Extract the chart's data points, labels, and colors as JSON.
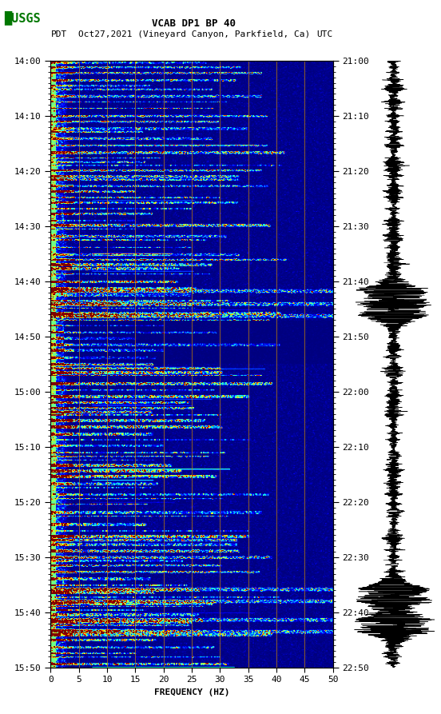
{
  "title_line1": "VCAB DP1 BP 40",
  "title_line2_left": "PDT",
  "title_line2_mid": "Oct27,2021 (Vineyard Canyon, Parkfield, Ca)",
  "title_line2_right": "UTC",
  "freq_min": 0,
  "freq_max": 50,
  "freq_ticks": [
    0,
    5,
    10,
    15,
    20,
    25,
    30,
    35,
    40,
    45,
    50
  ],
  "freq_label": "FREQUENCY (HZ)",
  "time_left_labels": [
    "14:00",
    "14:10",
    "14:20",
    "14:30",
    "14:40",
    "14:50",
    "15:00",
    "15:10",
    "15:20",
    "15:30",
    "15:40",
    "15:50"
  ],
  "time_right_labels": [
    "21:00",
    "21:10",
    "21:20",
    "21:30",
    "21:40",
    "21:50",
    "22:00",
    "22:10",
    "22:20",
    "22:30",
    "22:40",
    "22:50"
  ],
  "n_time_steps": 660,
  "n_freq_bins": 250,
  "bg_color": "white",
  "spectrogram_cmap": "jet",
  "vertical_line_color": "#cc8800",
  "vertical_line_freq": [
    5,
    10,
    15,
    20,
    25,
    30,
    35,
    40,
    45
  ],
  "usgs_color": "#007700",
  "font_family": "monospace",
  "n_labels": 12,
  "waveform_color": "black"
}
